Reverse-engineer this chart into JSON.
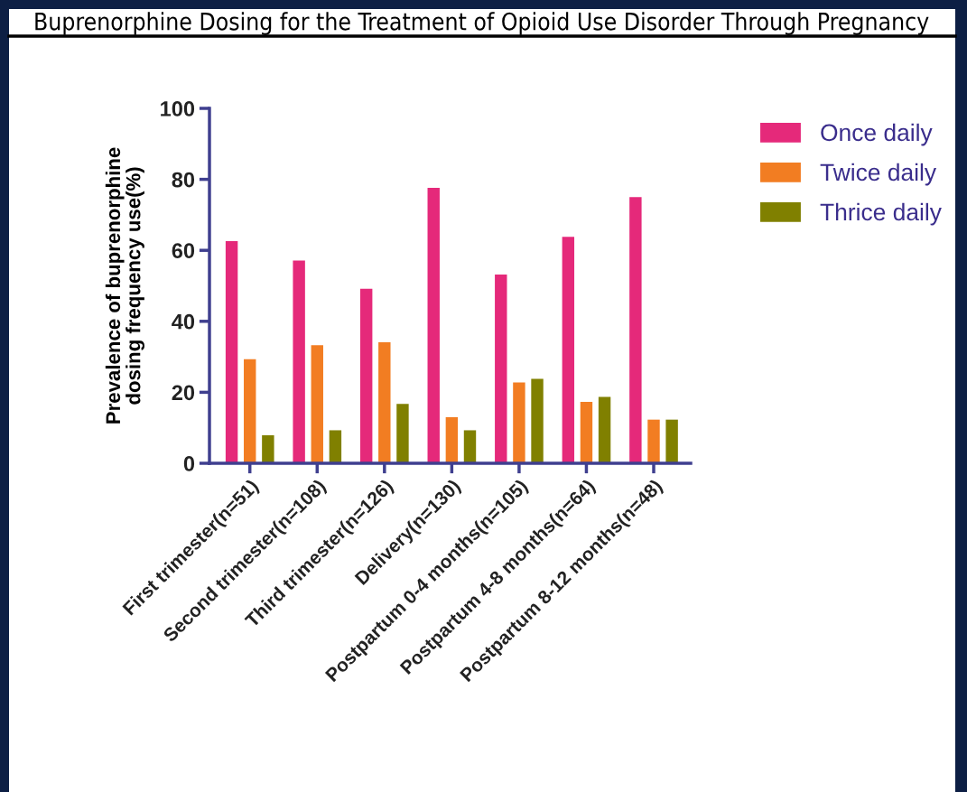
{
  "chart_data": {
    "type": "bar",
    "title": "Buprenorphine Dosing for the Treatment of Opioid Use Disorder Through Pregnancy",
    "ylabel": "Prevalence of buprenorphine\ndosing frequency use(%)",
    "categories": [
      "First trimester(n=51)",
      "Second trimester(n=108)",
      "Third trimester(n=126)",
      "Delivery(n=130)",
      "Postpartum 0-4 months(n=105)",
      "Postpartum 4-8 months(n=64)",
      "Postpartum 8-12 months(n=48)"
    ],
    "series": [
      {
        "name": "Once daily",
        "color": "#e5297a",
        "values": [
          62.6,
          57.1,
          49.2,
          77.6,
          53.2,
          63.8,
          75.0
        ]
      },
      {
        "name": "Twice daily",
        "color": "#f27d22",
        "values": [
          29.3,
          33.3,
          34.1,
          13.0,
          22.8,
          17.3,
          12.3
        ]
      },
      {
        "name": "Thrice daily",
        "color": "#808000",
        "values": [
          7.9,
          9.3,
          16.7,
          9.3,
          23.8,
          18.7,
          12.3
        ]
      }
    ],
    "ylim": [
      0,
      100
    ],
    "yticks": [
      0,
      20,
      40,
      60,
      80,
      100
    ],
    "grid": false,
    "legend": "top right"
  }
}
